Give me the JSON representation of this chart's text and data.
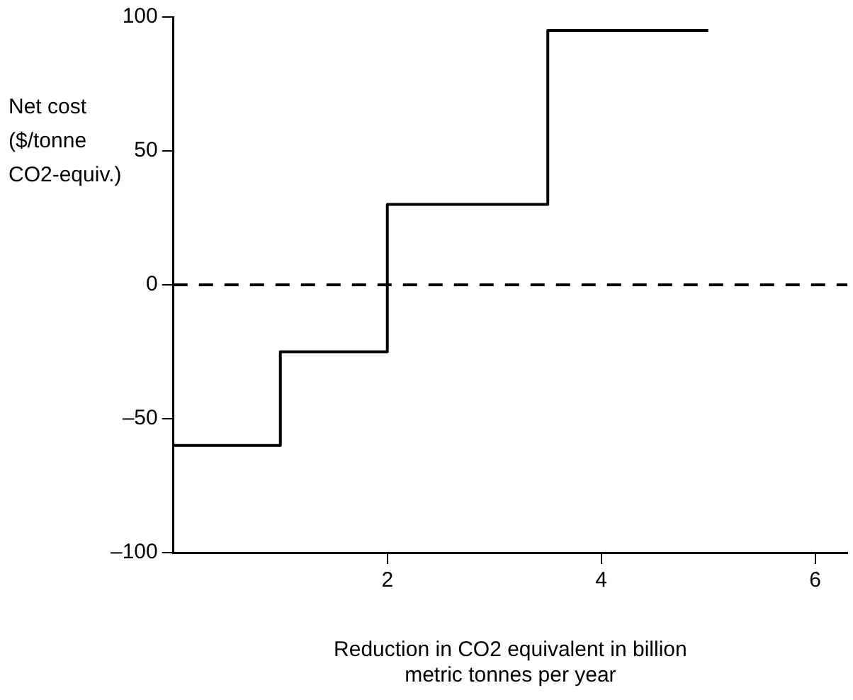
{
  "chart_data": {
    "type": "step",
    "ylabel": "Net cost\n($/tonne\nCO2-equiv.)",
    "xlabel": "Reduction in CO2 equivalent in billion\nmetric tonnes per year",
    "x": [
      0,
      1,
      2,
      3.5,
      5
    ],
    "series": [
      {
        "color": "#000000",
        "values": [
          -60,
          -25,
          30,
          95,
          95
        ]
      }
    ],
    "xlim": [
      0,
      6.3
    ],
    "xticks": [
      2,
      4,
      6
    ],
    "ylim": [
      -100,
      100
    ],
    "yticks": [
      {
        "value": -100,
        "label": "–100"
      },
      {
        "value": -50,
        "label": "–50"
      },
      0,
      50,
      100
    ],
    "ref_lines": [
      {
        "axis": "y",
        "value": 0,
        "line_style": "dashed",
        "color": "#000000"
      }
    ],
    "grid": false,
    "legend": false,
    "marker": "none",
    "line_style": "solid"
  }
}
